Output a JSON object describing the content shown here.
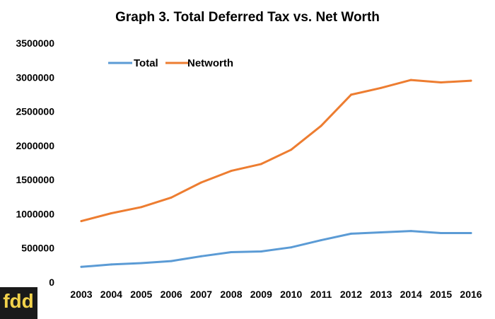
{
  "chart_data": {
    "type": "line",
    "title": "Graph 3. Total Deferred Tax vs. Net Worth",
    "xlabel": "",
    "ylabel": "",
    "categories": [
      "2003",
      "2004",
      "2005",
      "2006",
      "2007",
      "2008",
      "2009",
      "2010",
      "2011",
      "2012",
      "2013",
      "2014",
      "2015",
      "2016"
    ],
    "y_ticks": [
      "3500000",
      "3000000",
      "2500000",
      "2000000",
      "1500000",
      "1000000",
      "500000",
      "0"
    ],
    "ylim": [
      0,
      3500000
    ],
    "grid": false,
    "legend_position": "top-left",
    "series": [
      {
        "name": "Total",
        "color": "#5b9bd5",
        "values": [
          225000,
          260000,
          280000,
          310000,
          380000,
          440000,
          450000,
          510000,
          615000,
          710000,
          730000,
          750000,
          720000,
          720000
        ]
      },
      {
        "name": "Networth",
        "color": "#ed7d31",
        "values": [
          895000,
          1010000,
          1100000,
          1240000,
          1460000,
          1630000,
          1730000,
          1940000,
          2290000,
          2745000,
          2845000,
          2960000,
          2925000,
          2950000
        ]
      }
    ]
  },
  "logo": {
    "text": "fdd",
    "background": "#1a1a1a",
    "color": "#f2d24b"
  }
}
